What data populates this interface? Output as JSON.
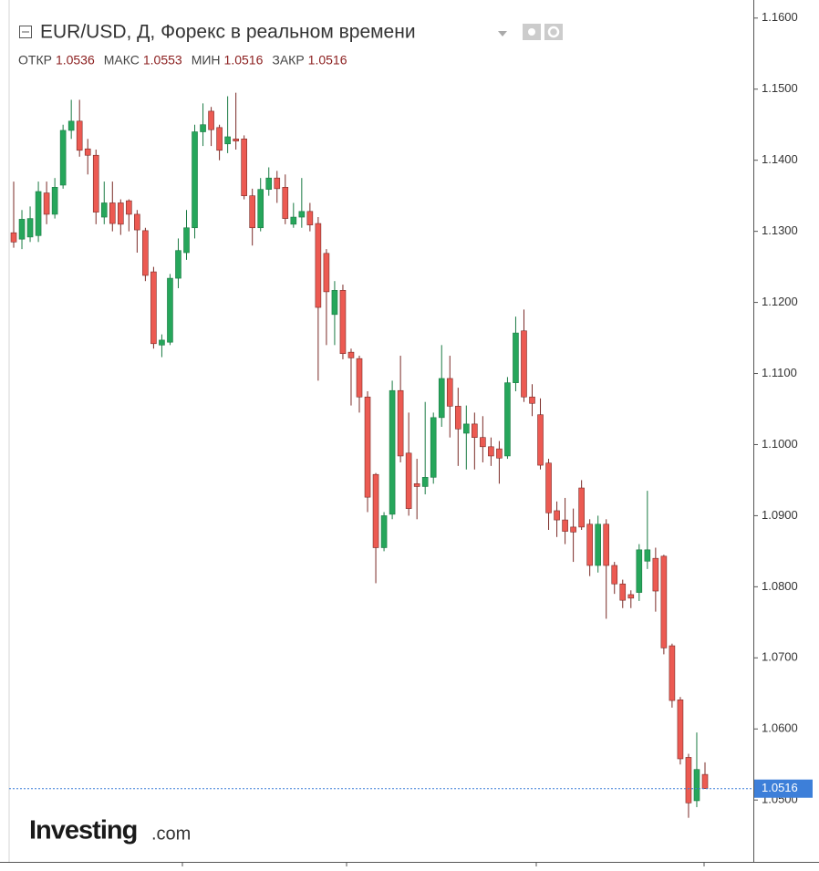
{
  "chart_data": {
    "type": "candlestick",
    "title": "EUR/USD, Д, Форекс в реальном времени",
    "stats": [
      {
        "label": "ОТКР",
        "value": 1.0536
      },
      {
        "label": "МАКС",
        "value": 1.0553
      },
      {
        "label": "МИН",
        "value": 1.0516
      },
      {
        "label": "ЗАКР",
        "value": 1.0516
      }
    ],
    "logo": {
      "name": "Investing",
      "suffix": ".com"
    },
    "last_price": 1.0516,
    "up_color": "#26a65b",
    "down_color": "#ec5a52",
    "last_price_color": "#3d7fd9",
    "ylim": [
      1.0413,
      1.1619
    ],
    "yticks": [
      {
        "value": 1.16,
        "label": "1.1600"
      },
      {
        "value": 1.15,
        "label": "1.1500"
      },
      {
        "value": 1.14,
        "label": "1.1400"
      },
      {
        "value": 1.13,
        "label": "1.1300"
      },
      {
        "value": 1.12,
        "label": "1.1200"
      },
      {
        "value": 1.11,
        "label": "1.1100"
      },
      {
        "value": 1.1,
        "label": "1.1000"
      },
      {
        "value": 1.09,
        "label": "1.0900"
      },
      {
        "value": 1.08,
        "label": "1.0800"
      },
      {
        "value": 1.07,
        "label": "1.0700"
      },
      {
        "value": 1.06,
        "label": "1.0600"
      },
      {
        "value": 1.05,
        "label": "1.0500"
      }
    ],
    "open": [
      1.1298,
      1.1289,
      1.1292,
      1.1294,
      1.1354,
      1.1324,
      1.1365,
      1.1442,
      1.1455,
      1.1416,
      1.1407,
      1.132,
      1.134,
      1.134,
      1.1343,
      1.1324,
      1.1301,
      1.1243,
      1.114,
      1.1144,
      1.1234,
      1.127,
      1.1305,
      1.144,
      1.1469,
      1.1446,
      1.1423,
      1.143,
      1.143,
      1.135,
      1.1305,
      1.1359,
      1.1375,
      1.1362,
      1.131,
      1.132,
      1.1328,
      1.1311,
      1.1269,
      1.1183,
      1.1217,
      1.113,
      1.1121,
      1.1067,
      1.0958,
      1.0855,
      1.0902,
      1.1076,
      1.0988,
      1.0945,
      1.0941,
      1.0954,
      1.1038,
      1.1093,
      1.1054,
      1.1016,
      1.1029,
      1.101,
      1.0997,
      1.0994,
      1.0984,
      1.1087,
      1.116,
      1.1067,
      1.1042,
      1.0974,
      1.0907,
      1.0894,
      1.0884,
      1.0939,
      1.0888,
      1.083,
      1.0888,
      1.083,
      1.0804,
      1.0789,
      1.0792,
      1.0836,
      1.084,
      1.0843,
      1.0717,
      1.0641,
      1.056,
      1.0499,
      1.0536
    ],
    "high": [
      1.137,
      1.133,
      1.1335,
      1.137,
      1.137,
      1.1375,
      1.145,
      1.1485,
      1.1485,
      1.143,
      1.1415,
      1.137,
      1.137,
      1.1345,
      1.1345,
      1.133,
      1.1305,
      1.125,
      1.1155,
      1.124,
      1.129,
      1.133,
      1.145,
      1.148,
      1.1475,
      1.145,
      1.149,
      1.1495,
      1.1435,
      1.136,
      1.1375,
      1.139,
      1.1385,
      1.138,
      1.134,
      1.1375,
      1.134,
      1.132,
      1.1275,
      1.123,
      1.1225,
      1.1135,
      1.1125,
      1.1075,
      1.096,
      1.0905,
      1.109,
      1.1125,
      1.1045,
      1.098,
      1.106,
      1.1045,
      1.114,
      1.1125,
      1.108,
      1.1055,
      1.1045,
      1.104,
      1.101,
      1.1005,
      1.1095,
      1.118,
      1.119,
      1.1085,
      1.1065,
      1.098,
      1.092,
      1.0925,
      1.091,
      1.095,
      1.0895,
      1.09,
      1.0895,
      1.0835,
      1.081,
      1.0795,
      1.086,
      1.0935,
      1.0855,
      1.0845,
      1.072,
      1.0645,
      1.0565,
      1.0595,
      1.0553
    ],
    "low": [
      1.1277,
      1.1275,
      1.1285,
      1.1285,
      1.131,
      1.1318,
      1.136,
      1.143,
      1.1405,
      1.138,
      1.131,
      1.131,
      1.13,
      1.1295,
      1.13,
      1.127,
      1.123,
      1.1135,
      1.1123,
      1.114,
      1.122,
      1.126,
      1.129,
      1.142,
      1.142,
      1.14,
      1.141,
      1.1415,
      1.1345,
      1.128,
      1.13,
      1.135,
      1.134,
      1.131,
      1.1305,
      1.1305,
      1.13,
      1.109,
      1.114,
      1.114,
      1.112,
      1.1055,
      1.1045,
      1.0905,
      1.0805,
      1.085,
      1.0895,
      1.0975,
      1.09,
      1.0895,
      1.093,
      1.0945,
      1.1025,
      1.101,
      1.097,
      1.0965,
      1.0965,
      1.0975,
      1.097,
      1.0945,
      1.098,
      1.1075,
      1.106,
      1.104,
      1.0965,
      1.088,
      1.087,
      1.086,
      1.0835,
      1.088,
      1.0815,
      1.082,
      1.0755,
      1.079,
      1.077,
      1.077,
      1.078,
      1.0825,
      1.0765,
      1.0705,
      1.063,
      1.055,
      1.0475,
      1.049,
      1.0516
    ],
    "close": [
      1.1285,
      1.1317,
      1.1318,
      1.1356,
      1.1324,
      1.1362,
      1.1442,
      1.1455,
      1.1414,
      1.1407,
      1.1327,
      1.134,
      1.1311,
      1.131,
      1.1324,
      1.1302,
      1.1238,
      1.1142,
      1.1147,
      1.1234,
      1.1273,
      1.1305,
      1.144,
      1.145,
      1.1443,
      1.1414,
      1.1433,
      1.1427,
      1.135,
      1.1305,
      1.1359,
      1.1375,
      1.136,
      1.1318,
      1.132,
      1.1328,
      1.1309,
      1.1193,
      1.1215,
      1.1217,
      1.1128,
      1.1122,
      1.1067,
      1.0926,
      1.0855,
      1.09,
      1.1076,
      1.0984,
      1.091,
      1.0941,
      1.0954,
      1.1038,
      1.1093,
      1.1054,
      1.1022,
      1.1029,
      1.101,
      1.0997,
      1.0984,
      1.0981,
      1.1087,
      1.1157,
      1.1067,
      1.1058,
      1.0971,
      1.0904,
      1.0894,
      1.0878,
      1.0877,
      1.0884,
      1.083,
      1.0888,
      1.083,
      1.0804,
      1.0781,
      1.0784,
      1.0852,
      1.0852,
      1.0794,
      1.0714,
      1.064,
      1.0558,
      1.0496,
      1.0543,
      1.0516
    ]
  }
}
